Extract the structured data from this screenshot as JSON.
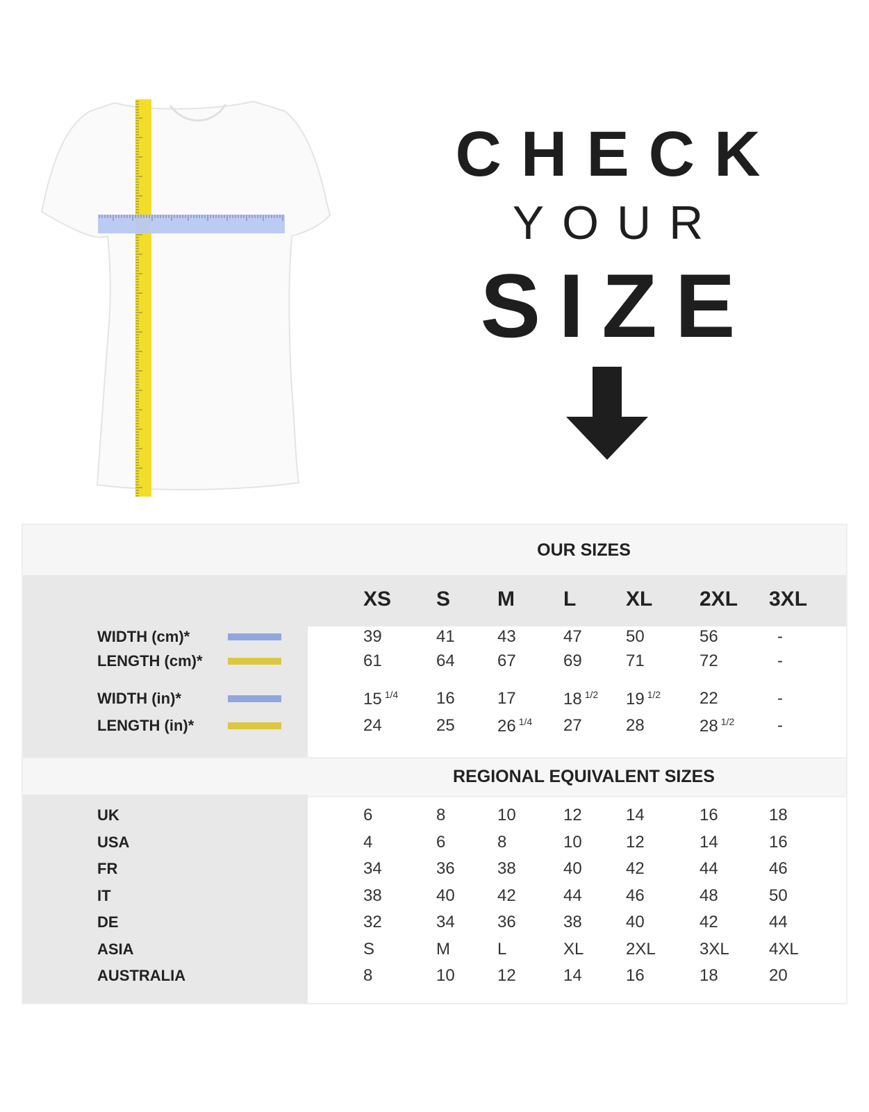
{
  "heading": {
    "line1": "CHECK",
    "line2": "YOUR",
    "line3": "SIZE",
    "arrow_icon": "arrow-down-icon"
  },
  "colors": {
    "width_swatch": "#8fa7dc",
    "length_swatch": "#dcc740",
    "tape_yellow": "#f1dd2a",
    "tape_blue": "#b8c8f2"
  },
  "our_sizes": {
    "title": "OUR SIZES",
    "sizes": [
      "XS",
      "S",
      "M",
      "L",
      "XL",
      "2XL",
      "3XL"
    ],
    "rows": [
      {
        "label": "WIDTH (cm)*",
        "swatch": "width",
        "values": [
          [
            "39",
            ""
          ],
          [
            "41",
            ""
          ],
          [
            "43",
            ""
          ],
          [
            "47",
            ""
          ],
          [
            "50",
            ""
          ],
          [
            "56",
            ""
          ],
          [
            "-",
            ""
          ]
        ]
      },
      {
        "label": "LENGTH (cm)*",
        "swatch": "length",
        "values": [
          [
            "61",
            ""
          ],
          [
            "64",
            ""
          ],
          [
            "67",
            ""
          ],
          [
            "69",
            ""
          ],
          [
            "71",
            ""
          ],
          [
            "72",
            ""
          ],
          [
            "-",
            ""
          ]
        ]
      },
      {
        "label": "WIDTH (in)*",
        "swatch": "width",
        "values": [
          [
            "15",
            "1/4"
          ],
          [
            "16",
            ""
          ],
          [
            "17",
            ""
          ],
          [
            "18",
            "1/2"
          ],
          [
            "19",
            "1/2"
          ],
          [
            "22",
            ""
          ],
          [
            "-",
            ""
          ]
        ]
      },
      {
        "label": "LENGTH (in)*",
        "swatch": "length",
        "values": [
          [
            "24",
            ""
          ],
          [
            "25",
            ""
          ],
          [
            "26",
            "1/4"
          ],
          [
            "27",
            ""
          ],
          [
            "28",
            ""
          ],
          [
            "28",
            "1/2"
          ],
          [
            "-",
            ""
          ]
        ]
      }
    ]
  },
  "regional": {
    "title": "REGIONAL EQUIVALENT SIZES",
    "rows": [
      {
        "label": "UK",
        "values": [
          "6",
          "8",
          "10",
          "12",
          "14",
          "16",
          "18"
        ]
      },
      {
        "label": "USA",
        "values": [
          "4",
          "6",
          "8",
          "10",
          "12",
          "14",
          "16"
        ]
      },
      {
        "label": "FR",
        "values": [
          "34",
          "36",
          "38",
          "40",
          "42",
          "44",
          "46"
        ]
      },
      {
        "label": "IT",
        "values": [
          "38",
          "40",
          "42",
          "44",
          "46",
          "48",
          "50"
        ]
      },
      {
        "label": "DE",
        "values": [
          "32",
          "34",
          "36",
          "38",
          "40",
          "42",
          "44"
        ]
      },
      {
        "label": "ASIA",
        "values": [
          "S",
          "M",
          "L",
          "XL",
          "2XL",
          "3XL",
          "4XL"
        ]
      },
      {
        "label": "AUSTRALIA",
        "values": [
          "8",
          "10",
          "12",
          "14",
          "16",
          "18",
          "20"
        ]
      }
    ]
  }
}
